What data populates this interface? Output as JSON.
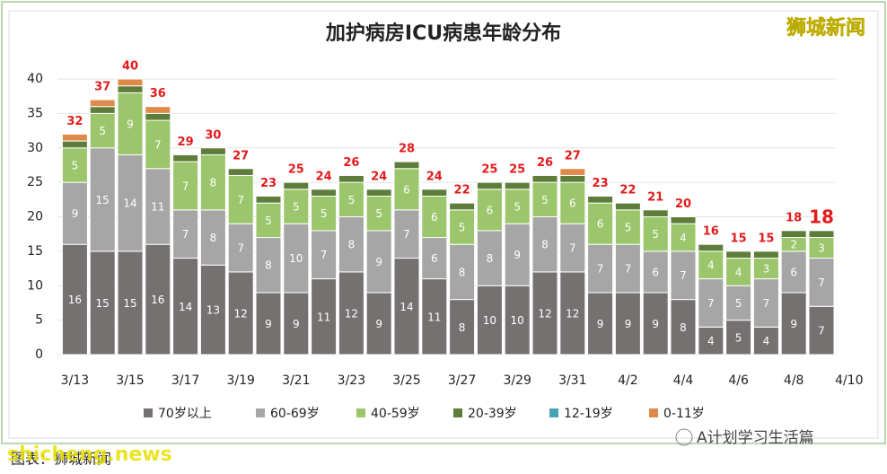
{
  "chart_data": {
    "type": "stacked-bar",
    "title": "加护病房ICU病患年龄分布",
    "watermark": "狮城新闻",
    "source": "图表：狮城新闻",
    "site": "shicheng.news",
    "account": "A计划学习生活篇",
    "categories": [
      "3/13",
      null,
      "3/15",
      null,
      "3/17",
      null,
      "3/19",
      null,
      "3/21",
      null,
      "3/23",
      null,
      "3/25",
      null,
      "3/27",
      null,
      "3/29",
      null,
      "3/31",
      null,
      "4/2",
      null,
      "4/4",
      null,
      "4/6",
      null,
      "4/8",
      null,
      "4/10"
    ],
    "ylim": [
      0,
      40
    ],
    "yticks": [
      0,
      5,
      10,
      15,
      20,
      25,
      30,
      35,
      40
    ],
    "grid": true,
    "totals": [
      32,
      37,
      40,
      36,
      29,
      30,
      27,
      23,
      25,
      24,
      26,
      24,
      28,
      24,
      22,
      25,
      25,
      26,
      27,
      23,
      22,
      21,
      20,
      16,
      15,
      15,
      18,
      18,
      null
    ],
    "series": [
      {
        "name": "70岁以上",
        "color": "#767171",
        "show_labels": true,
        "values": [
          16,
          15,
          15,
          16,
          14,
          13,
          12,
          9,
          9,
          11,
          12,
          9,
          14,
          11,
          8,
          10,
          10,
          12,
          12,
          9,
          9,
          9,
          8,
          4,
          5,
          4,
          9,
          7,
          null
        ]
      },
      {
        "name": "60-69岁",
        "color": "#a6a6a6",
        "show_labels": true,
        "values": [
          9,
          15,
          14,
          11,
          7,
          8,
          7,
          8,
          10,
          7,
          8,
          9,
          7,
          6,
          8,
          8,
          9,
          8,
          7,
          7,
          7,
          6,
          7,
          7,
          5,
          7,
          6,
          7,
          null
        ]
      },
      {
        "name": "40-59岁",
        "color": "#9bc66b",
        "show_labels": true,
        "values": [
          5,
          5,
          9,
          7,
          7,
          8,
          7,
          5,
          5,
          5,
          5,
          5,
          6,
          6,
          5,
          6,
          5,
          5,
          6,
          6,
          5,
          5,
          4,
          4,
          4,
          3,
          2,
          3,
          null
        ]
      },
      {
        "name": "20-39岁",
        "color": "#5e7d3a",
        "show_labels": false,
        "values": [
          1,
          1,
          1,
          1,
          1,
          1,
          1,
          1,
          1,
          1,
          1,
          1,
          1,
          1,
          1,
          1,
          1,
          1,
          1,
          1,
          1,
          1,
          1,
          1,
          1,
          1,
          1,
          1,
          null
        ]
      },
      {
        "name": "12-19岁",
        "color": "#4aa3b5",
        "show_labels": false,
        "values": [
          0,
          0,
          0,
          0,
          0,
          0,
          0,
          0,
          0,
          0,
          0,
          0,
          0,
          0,
          0,
          0,
          0,
          0,
          0,
          0,
          0,
          0,
          0,
          0,
          0,
          0,
          0,
          0,
          null
        ]
      },
      {
        "name": "0-11岁",
        "color": "#e08a4a",
        "show_labels": false,
        "values": [
          1,
          1,
          1,
          1,
          0,
          0,
          0,
          0,
          0,
          0,
          0,
          0,
          0,
          0,
          0,
          0,
          0,
          0,
          1,
          0,
          0,
          0,
          0,
          0,
          0,
          0,
          0,
          0,
          null
        ]
      }
    ]
  }
}
